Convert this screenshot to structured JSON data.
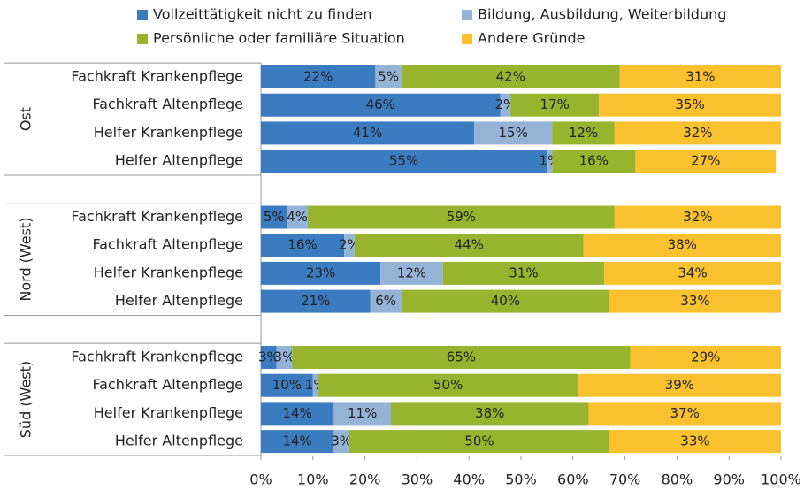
{
  "chart_data": {
    "type": "stacked-barh",
    "groups": [
      "Ost",
      "Nord (West)",
      "Süd (West)"
    ],
    "categories": [
      "Fachkraft Krankenpflege",
      "Fachkraft Altenpflege",
      "Helfer Krankenpflege",
      "Helfer Altenpflege",
      "Fachkraft Krankenpflege",
      "Fachkraft Altenpflege",
      "Helfer Krankenpflege",
      "Helfer Altenpflege",
      "Fachkraft Krankenpflege",
      "Fachkraft Altenpflege",
      "Helfer Krankenpflege",
      "Helfer Altenpflege"
    ],
    "series": [
      {
        "name": "Vollzeittätigkeit nicht zu finden",
        "color": "#3b7bbf",
        "values": [
          22,
          46,
          41,
          55,
          5,
          16,
          23,
          21,
          3,
          10,
          14,
          14
        ],
        "value_labels": [
          "22%",
          "46%",
          "41%",
          "55%",
          "5%",
          "16%",
          "23%",
          "21%",
          "3%",
          "10%",
          "14%",
          "14%"
        ]
      },
      {
        "name": "Bildung, Ausbildung, Weiterbildung",
        "color": "#95b3d7",
        "values": [
          5,
          2,
          15,
          1,
          4,
          2,
          12,
          6,
          3,
          1,
          11,
          3
        ],
        "value_labels": [
          "5%",
          "2%",
          "15%",
          "1%",
          "4%",
          "2%",
          "12%",
          "6%",
          "3%",
          "1%",
          "11%",
          "3%"
        ]
      },
      {
        "name": "Persönliche oder familiäre Situation",
        "color": "#98b42e",
        "values": [
          42,
          17,
          12,
          16,
          59,
          44,
          31,
          40,
          65,
          50,
          38,
          50
        ],
        "value_labels": [
          "42%",
          "17%",
          "12%",
          "16%",
          "59%",
          "44%",
          "31%",
          "40%",
          "65%",
          "50%",
          "38%",
          "50%"
        ]
      },
      {
        "name": "Andere Gründe",
        "color": "#fac12e",
        "values": [
          31,
          35,
          32,
          27,
          32,
          38,
          34,
          33,
          29,
          39,
          37,
          33
        ],
        "value_labels": [
          "31%",
          "35%",
          "32%",
          "27%",
          "32%",
          "38%",
          "34%",
          "33%",
          "29%",
          "39%",
          "37%",
          "33%"
        ]
      }
    ],
    "xlim": [
      0,
      100
    ],
    "xticks": [
      {
        "value": 0,
        "label": "0%"
      },
      {
        "value": 10,
        "label": "10%"
      },
      {
        "value": 20,
        "label": "20%"
      },
      {
        "value": 30,
        "label": "30%"
      },
      {
        "value": 40,
        "label": "40%"
      },
      {
        "value": 50,
        "label": "50%"
      },
      {
        "value": 60,
        "label": "60%"
      },
      {
        "value": 70,
        "label": "70%"
      },
      {
        "value": 80,
        "label": "80%"
      },
      {
        "value": 90,
        "label": "90%"
      },
      {
        "value": 100,
        "label": "100%"
      }
    ]
  }
}
